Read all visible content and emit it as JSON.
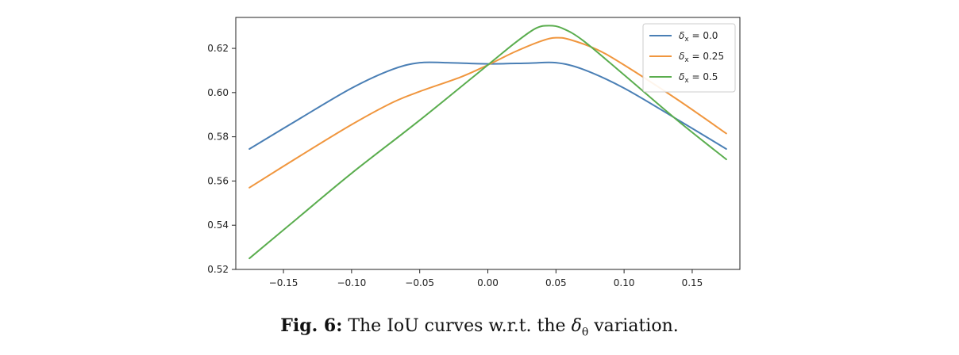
{
  "chart_data": {
    "type": "line",
    "title": "",
    "xlabel": "",
    "ylabel": "",
    "xlim": [
      -0.185,
      0.185
    ],
    "ylim": [
      0.52,
      0.634
    ],
    "xticks": [
      -0.15,
      -0.1,
      -0.05,
      0.0,
      0.05,
      0.1,
      0.15
    ],
    "xtick_labels": [
      "−0.15",
      "−0.10",
      "−0.05",
      "0.00",
      "0.05",
      "0.10",
      "0.15"
    ],
    "yticks": [
      0.52,
      0.54,
      0.56,
      0.58,
      0.6,
      0.62
    ],
    "ytick_labels": [
      "0.52",
      "0.54",
      "0.56",
      "0.58",
      "0.60",
      "0.62"
    ],
    "grid": false,
    "legend": "top-right",
    "series": [
      {
        "name": "δx = 0.0",
        "name_base": "δ",
        "name_sub": "x",
        "name_value": " = 0.0",
        "color": "#4a7fb5",
        "x": [
          -0.175,
          -0.14,
          -0.1,
          -0.07,
          -0.05,
          -0.03,
          0.0,
          0.03,
          0.05,
          0.07,
          0.1,
          0.14,
          0.175
        ],
        "y": [
          0.5745,
          0.5875,
          0.602,
          0.6105,
          0.6135,
          0.6135,
          0.613,
          0.6133,
          0.6135,
          0.6105,
          0.602,
          0.5875,
          0.5745
        ]
      },
      {
        "name": "δx = 0.25",
        "name_base": "δ",
        "name_sub": "x",
        "name_value": " = 0.25",
        "color": "#f0963e",
        "x": [
          -0.175,
          -0.14,
          -0.1,
          -0.07,
          -0.05,
          -0.02,
          0.0,
          0.02,
          0.04,
          0.05,
          0.06,
          0.08,
          0.1,
          0.14,
          0.175
        ],
        "y": [
          0.557,
          0.5705,
          0.5855,
          0.5955,
          0.6005,
          0.607,
          0.6125,
          0.6185,
          0.6235,
          0.6248,
          0.624,
          0.6195,
          0.6125,
          0.5965,
          0.5815
        ]
      },
      {
        "name": "δx = 0.5",
        "name_base": "δ",
        "name_sub": "x",
        "name_value": " = 0.5",
        "color": "#5aad4e",
        "x": [
          -0.175,
          -0.14,
          -0.1,
          -0.05,
          0.0,
          0.02,
          0.035,
          0.045,
          0.055,
          0.07,
          0.1,
          0.14,
          0.175
        ],
        "y": [
          0.525,
          0.543,
          0.5635,
          0.5875,
          0.6125,
          0.6225,
          0.629,
          0.6303,
          0.629,
          0.6235,
          0.608,
          0.587,
          0.5698
        ]
      }
    ]
  },
  "caption": {
    "label": "Fig. 6:",
    "text_before": " The IoU curves w.r.t. the ",
    "symbol": "δ",
    "symbol_sub": "θ",
    "text_after": " variation."
  }
}
